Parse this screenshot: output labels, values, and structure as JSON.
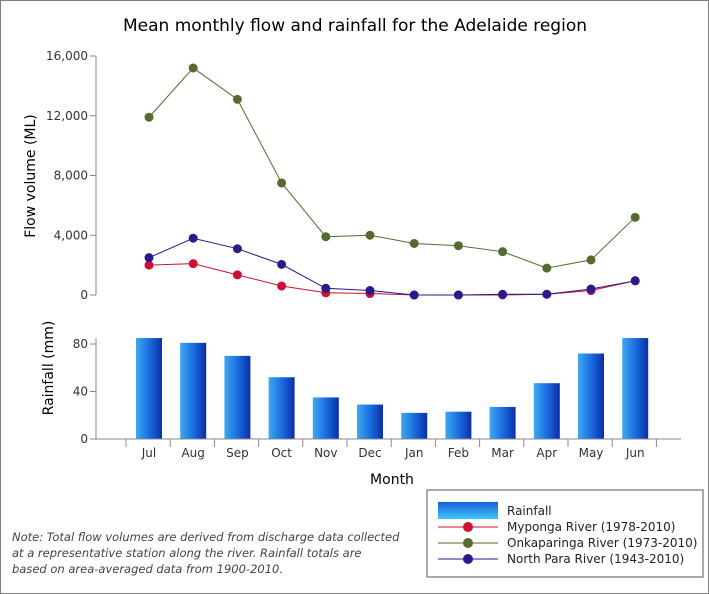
{
  "chart_data": {
    "type": "line+bar",
    "title": "Mean monthly flow and rainfall for the Adelaide region",
    "xlabel": "Month",
    "categories": [
      "Jul",
      "Aug",
      "Sep",
      "Oct",
      "Nov",
      "Dec",
      "Jan",
      "Feb",
      "Mar",
      "Apr",
      "May",
      "Jun"
    ],
    "flow": {
      "ylabel": "Flow volume (ML)",
      "ylim": [
        0,
        16000
      ],
      "yticks": [
        0,
        4000,
        8000,
        12000,
        16000
      ],
      "ytick_labels": [
        "0",
        "4,000",
        "8,000",
        "12,000",
        "16,000"
      ],
      "series": [
        {
          "name": "Myponga River (1978-2010)",
          "color": "#cc1133",
          "values": [
            2000,
            2100,
            1350,
            600,
            150,
            100,
            0,
            0,
            0,
            50,
            300,
            950
          ]
        },
        {
          "name": "Onkaparinga River (1973-2010)",
          "color": "#556b2f",
          "values": [
            11900,
            15200,
            13100,
            7500,
            3900,
            4000,
            3450,
            3300,
            2900,
            1800,
            2350,
            5200
          ]
        },
        {
          "name": "North Para River (1943-2010)",
          "color": "#2a1a8c",
          "values": [
            2500,
            3800,
            3100,
            2050,
            450,
            300,
            0,
            0,
            50,
            50,
            400,
            950
          ]
        }
      ]
    },
    "rainfall": {
      "name": "Rainfall",
      "ylabel": "Rainfall (mm)",
      "ylim": [
        0,
        90
      ],
      "yticks": [
        0,
        40,
        80
      ],
      "ytick_labels": [
        "0",
        "40",
        "80"
      ],
      "values": [
        85,
        81,
        70,
        52,
        35,
        29,
        22,
        23,
        27,
        47,
        72,
        85
      ]
    },
    "legend_position": "bottom-right"
  },
  "note_lines": [
    "Note: Total flow volumes are derived from discharge data collected",
    "at a representative station along the river. Rainfall totals are",
    "based on area-averaged data from 1900-2010."
  ]
}
